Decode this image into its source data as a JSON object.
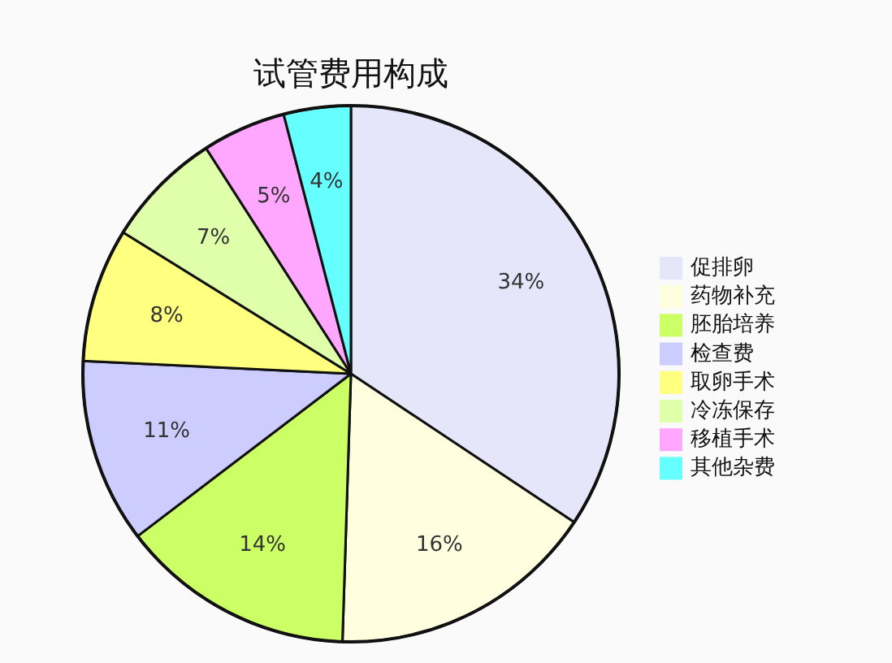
{
  "chart_data": {
    "type": "pie",
    "title": "试管费用构成",
    "categories": [
      "促排卵",
      "药物补充",
      "胚胎培养",
      "检查费",
      "取卵手术",
      "冷冻保存",
      "移植手术",
      "其他杂费"
    ],
    "values": [
      34,
      16,
      14,
      11,
      8,
      7,
      5,
      4
    ],
    "value_labels": [
      "34%",
      "16%",
      "14%",
      "11%",
      "8%",
      "7%",
      "5%",
      "4%"
    ],
    "colors": [
      "#e6e6fa",
      "#ffffe0",
      "#ccff66",
      "#ccccff",
      "#ffff80",
      "#e0ffaa",
      "#ffa6ff",
      "#66ffff"
    ],
    "legend": "right"
  }
}
